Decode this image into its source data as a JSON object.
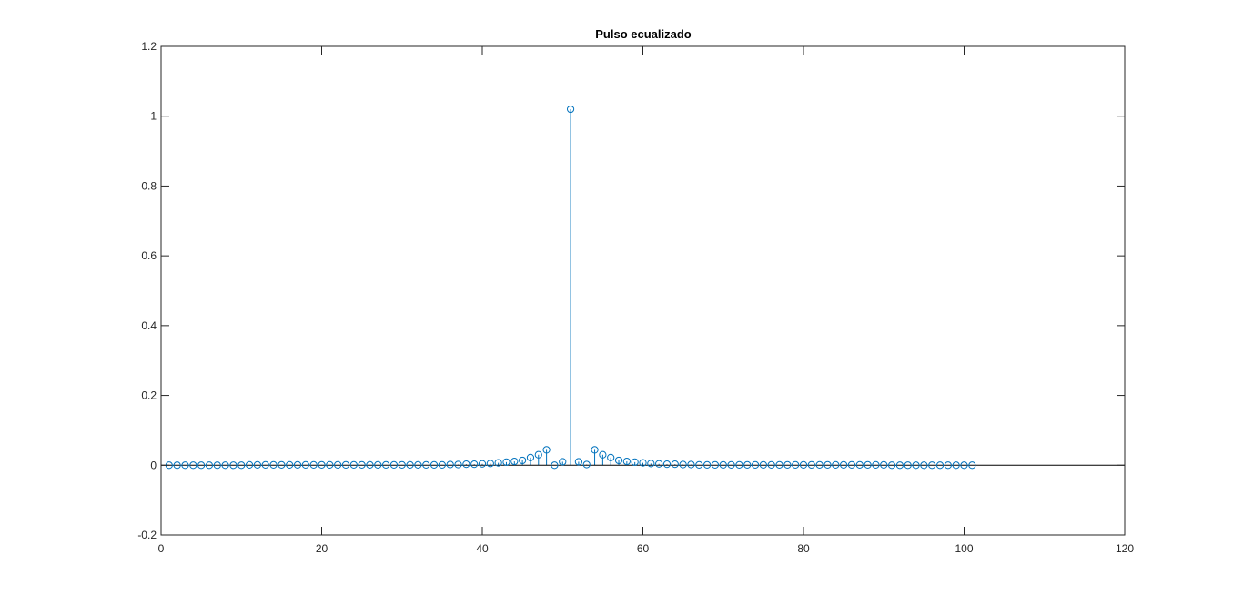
{
  "colors": {
    "series": "#0072BD",
    "axis": "#262626",
    "baseline": "#000000"
  },
  "chart_data": {
    "type": "stem",
    "title": "Pulso ecualizado",
    "xlabel": "",
    "ylabel": "",
    "xlim": [
      0,
      120
    ],
    "ylim": [
      -0.2,
      1.2
    ],
    "xticks": [
      0,
      20,
      40,
      60,
      80,
      100,
      120
    ],
    "xtick_labels": [
      "0",
      "20",
      "40",
      "60",
      "80",
      "100",
      "120"
    ],
    "yticks": [
      -0.2,
      0,
      0.2,
      0.4,
      0.6,
      0.8,
      1,
      1.2
    ],
    "ytick_labels": [
      "-0.2",
      "0",
      "0.2",
      "0.4",
      "0.6",
      "0.8",
      "1",
      "1.2"
    ],
    "grid": false,
    "baseline": 0,
    "x": [
      1,
      2,
      3,
      4,
      5,
      6,
      7,
      8,
      9,
      10,
      11,
      12,
      13,
      14,
      15,
      16,
      17,
      18,
      19,
      20,
      21,
      22,
      23,
      24,
      25,
      26,
      27,
      28,
      29,
      30,
      31,
      32,
      33,
      34,
      35,
      36,
      37,
      38,
      39,
      40,
      41,
      42,
      43,
      44,
      45,
      46,
      47,
      48,
      49,
      50,
      51,
      52,
      53,
      54,
      55,
      56,
      57,
      58,
      59,
      60,
      61,
      62,
      63,
      64,
      65,
      66,
      67,
      68,
      69,
      70,
      71,
      72,
      73,
      74,
      75,
      76,
      77,
      78,
      79,
      80,
      81,
      82,
      83,
      84,
      85,
      86,
      87,
      88,
      89,
      90,
      91,
      92,
      93,
      94,
      95,
      96,
      97,
      98,
      99,
      100,
      101
    ],
    "y": [
      0.0,
      0.0,
      0.0,
      0.0,
      0.0,
      0.0,
      0.0,
      0.0,
      0.0,
      0.0,
      0.001,
      0.001,
      0.001,
      0.001,
      0.001,
      0.001,
      0.001,
      0.001,
      0.001,
      0.001,
      0.001,
      0.001,
      0.001,
      0.001,
      0.001,
      0.001,
      0.001,
      0.001,
      0.001,
      0.001,
      0.001,
      0.001,
      0.001,
      0.001,
      0.001,
      0.002,
      0.002,
      0.003,
      0.003,
      0.004,
      0.005,
      0.007,
      0.009,
      0.011,
      0.014,
      0.022,
      0.03,
      0.044,
      0.0,
      0.01,
      1.02,
      0.01,
      0.002,
      0.044,
      0.03,
      0.022,
      0.014,
      0.011,
      0.009,
      0.007,
      0.005,
      0.004,
      0.003,
      0.003,
      0.002,
      0.002,
      0.001,
      0.001,
      0.001,
      0.001,
      0.001,
      0.001,
      0.001,
      0.001,
      0.001,
      0.001,
      0.001,
      0.001,
      0.001,
      0.001,
      0.001,
      0.001,
      0.001,
      0.001,
      0.001,
      0.001,
      0.001,
      0.001,
      0.001,
      0.001,
      0.0,
      0.0,
      0.0,
      0.0,
      0.0,
      0.0,
      0.0,
      0.0,
      0.0,
      0.0,
      0.0
    ]
  }
}
